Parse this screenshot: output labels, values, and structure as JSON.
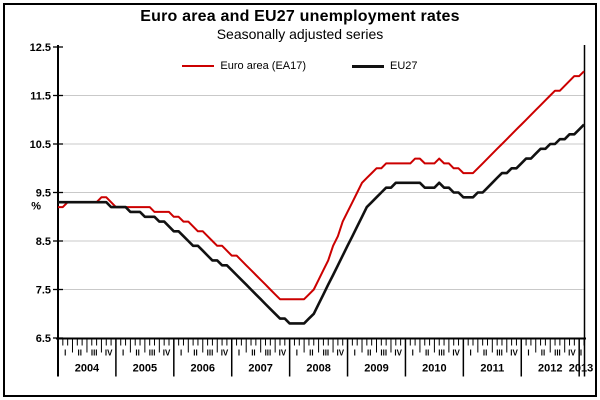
{
  "chart_data": {
    "type": "line",
    "title": "Euro area and EU27 unemployment rates",
    "subtitle": "Seasonally adjusted series",
    "ylabel": "%",
    "ylim": [
      6.5,
      12.5
    ],
    "y_ticks": [
      12.5,
      11.5,
      10.5,
      9.5,
      8.5,
      7.5,
      6.5
    ],
    "gridlines": [
      11.5,
      10.5,
      9.5,
      8.5,
      7.5
    ],
    "grid_color": "#c9c9c9",
    "frequency": "monthly",
    "x_range": {
      "start": "2004-01",
      "end": "2013-02"
    },
    "years": [
      "2004",
      "2005",
      "2006",
      "2007",
      "2008",
      "2009",
      "2010",
      "2011",
      "2012",
      "2013"
    ],
    "quarter_labels": [
      "I",
      "II",
      "III",
      "IV"
    ],
    "legend_position": "top",
    "series": [
      {
        "name": "Euro area (EA17)",
        "color": "#cc0000",
        "width": 2,
        "values": [
          9.2,
          9.2,
          9.3,
          9.3,
          9.3,
          9.3,
          9.3,
          9.3,
          9.3,
          9.4,
          9.4,
          9.3,
          9.2,
          9.2,
          9.2,
          9.2,
          9.2,
          9.2,
          9.2,
          9.2,
          9.1,
          9.1,
          9.1,
          9.1,
          9.0,
          9.0,
          8.9,
          8.9,
          8.8,
          8.7,
          8.7,
          8.6,
          8.5,
          8.4,
          8.4,
          8.3,
          8.2,
          8.2,
          8.1,
          8.0,
          7.9,
          7.8,
          7.7,
          7.6,
          7.5,
          7.4,
          7.3,
          7.3,
          7.3,
          7.3,
          7.3,
          7.3,
          7.4,
          7.5,
          7.7,
          7.9,
          8.1,
          8.4,
          8.6,
          8.9,
          9.1,
          9.3,
          9.5,
          9.7,
          9.8,
          9.9,
          10.0,
          10.0,
          10.1,
          10.1,
          10.1,
          10.1,
          10.1,
          10.1,
          10.2,
          10.2,
          10.1,
          10.1,
          10.1,
          10.2,
          10.1,
          10.1,
          10.0,
          10.0,
          9.9,
          9.9,
          9.9,
          10.0,
          10.1,
          10.2,
          10.3,
          10.4,
          10.5,
          10.6,
          10.7,
          10.8,
          10.9,
          11.0,
          11.1,
          11.2,
          11.3,
          11.4,
          11.5,
          11.6,
          11.6,
          11.7,
          11.8,
          11.9,
          11.9,
          12.0
        ]
      },
      {
        "name": "EU27",
        "color": "#111111",
        "width": 2.6,
        "values": [
          9.3,
          9.3,
          9.3,
          9.3,
          9.3,
          9.3,
          9.3,
          9.3,
          9.3,
          9.3,
          9.3,
          9.2,
          9.2,
          9.2,
          9.2,
          9.1,
          9.1,
          9.1,
          9.0,
          9.0,
          9.0,
          8.9,
          8.9,
          8.8,
          8.7,
          8.7,
          8.6,
          8.5,
          8.4,
          8.4,
          8.3,
          8.2,
          8.1,
          8.1,
          8.0,
          8.0,
          7.9,
          7.8,
          7.7,
          7.6,
          7.5,
          7.4,
          7.3,
          7.2,
          7.1,
          7.0,
          6.9,
          6.9,
          6.8,
          6.8,
          6.8,
          6.8,
          6.9,
          7.0,
          7.2,
          7.4,
          7.6,
          7.8,
          8.0,
          8.2,
          8.4,
          8.6,
          8.8,
          9.0,
          9.2,
          9.3,
          9.4,
          9.5,
          9.6,
          9.6,
          9.7,
          9.7,
          9.7,
          9.7,
          9.7,
          9.7,
          9.6,
          9.6,
          9.6,
          9.7,
          9.6,
          9.6,
          9.5,
          9.5,
          9.4,
          9.4,
          9.4,
          9.5,
          9.5,
          9.6,
          9.7,
          9.8,
          9.9,
          9.9,
          10.0,
          10.0,
          10.1,
          10.2,
          10.2,
          10.3,
          10.4,
          10.4,
          10.5,
          10.5,
          10.6,
          10.6,
          10.7,
          10.7,
          10.8,
          10.9
        ]
      }
    ]
  }
}
